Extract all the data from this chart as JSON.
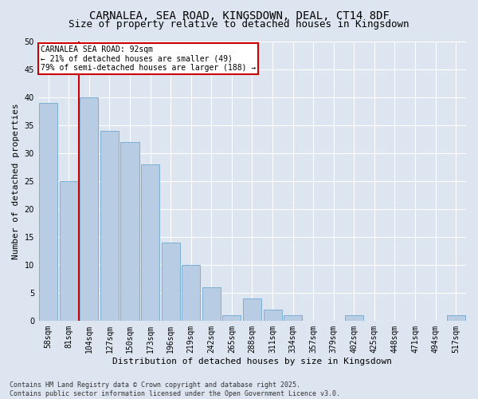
{
  "title1": "CARNALEA, SEA ROAD, KINGSDOWN, DEAL, CT14 8DF",
  "title2": "Size of property relative to detached houses in Kingsdown",
  "xlabel": "Distribution of detached houses by size in Kingsdown",
  "ylabel": "Number of detached properties",
  "categories": [
    "58sqm",
    "81sqm",
    "104sqm",
    "127sqm",
    "150sqm",
    "173sqm",
    "196sqm",
    "219sqm",
    "242sqm",
    "265sqm",
    "288sqm",
    "311sqm",
    "334sqm",
    "357sqm",
    "379sqm",
    "402sqm",
    "425sqm",
    "448sqm",
    "471sqm",
    "494sqm",
    "517sqm"
  ],
  "values": [
    39,
    25,
    40,
    34,
    32,
    28,
    14,
    10,
    6,
    1,
    4,
    2,
    1,
    0,
    0,
    1,
    0,
    0,
    0,
    0,
    1
  ],
  "bar_color": "#b8cce4",
  "bar_edge_color": "#7bafd4",
  "annotation_text": "CARNALEA SEA ROAD: 92sqm\n← 21% of detached houses are smaller (49)\n79% of semi-detached houses are larger (188) →",
  "annotation_box_color": "#ffffff",
  "annotation_box_edge": "#cc0000",
  "vline_color": "#cc0000",
  "bg_color": "#dde6f0",
  "grid_color": "#ffffff",
  "ylim": [
    0,
    50
  ],
  "yticks": [
    0,
    5,
    10,
    15,
    20,
    25,
    30,
    35,
    40,
    45,
    50
  ],
  "footer": "Contains HM Land Registry data © Crown copyright and database right 2025.\nContains public sector information licensed under the Open Government Licence v3.0.",
  "title_fontsize": 10,
  "subtitle_fontsize": 9,
  "tick_fontsize": 7,
  "ylabel_fontsize": 8,
  "xlabel_fontsize": 8,
  "footer_fontsize": 6,
  "annot_fontsize": 7
}
